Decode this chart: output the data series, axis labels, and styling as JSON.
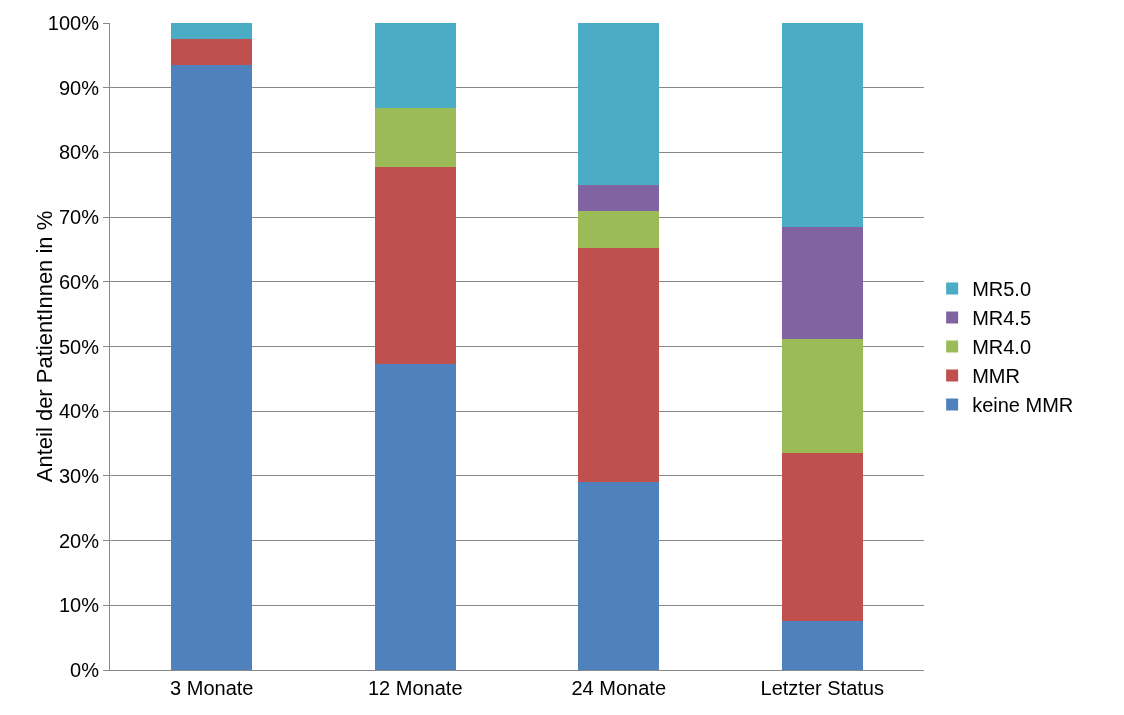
{
  "chart_data": {
    "type": "bar",
    "stacked": true,
    "ylabel": "Anteil der PatientInnen in %",
    "categories": [
      "3 Monate",
      "12 Monate",
      "24 Monate",
      "Letzter Status"
    ],
    "series": [
      {
        "name": "keine MMR",
        "color": "#4f81bd",
        "values": [
          93.5,
          47.3,
          29.1,
          7.6
        ]
      },
      {
        "name": "MMR",
        "color": "#c0504d",
        "values": [
          4.0,
          30.4,
          36.2,
          26.0
        ]
      },
      {
        "name": "MR4.0",
        "color": "#9bbb59",
        "values": [
          0,
          9.2,
          5.6,
          17.6
        ]
      },
      {
        "name": "MR4.5",
        "color": "#8064a2",
        "values": [
          0,
          0,
          4.0,
          17.2
        ]
      },
      {
        "name": "MR5.0",
        "color": "#4bacc6",
        "values": [
          2.5,
          13.1,
          25.1,
          31.6
        ]
      }
    ],
    "ylim": [
      0,
      100
    ],
    "yticks": [
      {
        "value": 0,
        "label": "0%"
      },
      {
        "value": 10,
        "label": "10%"
      },
      {
        "value": 20,
        "label": "20%"
      },
      {
        "value": 30,
        "label": "30%"
      },
      {
        "value": 40,
        "label": "40%"
      },
      {
        "value": 50,
        "label": "50%"
      },
      {
        "value": 60,
        "label": "60%"
      },
      {
        "value": 70,
        "label": "70%"
      },
      {
        "value": 80,
        "label": "80%"
      },
      {
        "value": 90,
        "label": "90%"
      },
      {
        "value": 100,
        "label": "100%"
      }
    ],
    "grid": "y",
    "legend": "right"
  }
}
